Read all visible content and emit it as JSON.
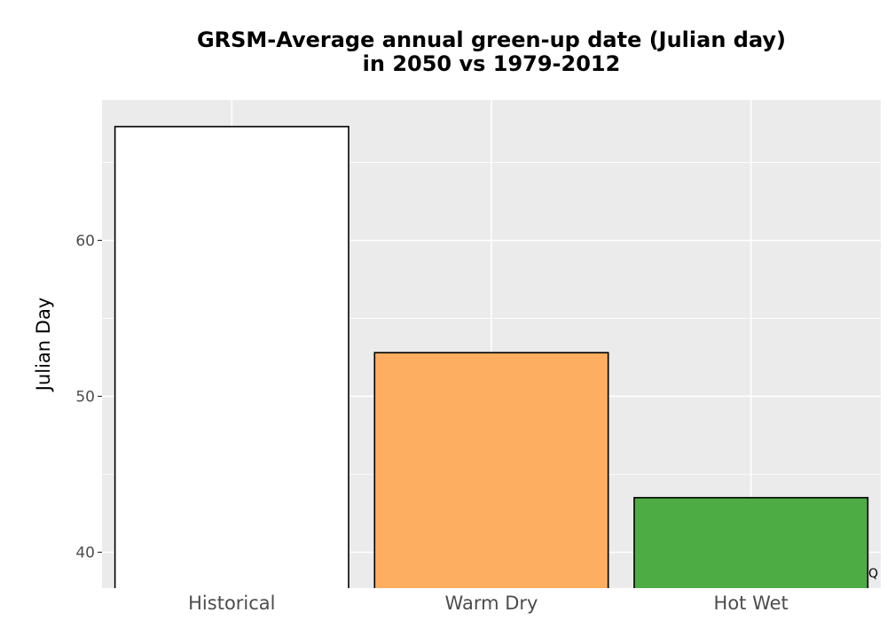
{
  "chart_data": {
    "type": "bar",
    "title_lines": [
      "GRSM-Average annual green-up date (Julian day)",
      "in 2050 vs 1979-2012"
    ],
    "xlabel": "",
    "ylabel": "Julian Day",
    "categories": [
      "Historical",
      "Warm Dry",
      "Hot Wet"
    ],
    "values": [
      67.3,
      52.8,
      43.5
    ],
    "colors": [
      "#ffffff",
      "#fdae61",
      "#4dac43"
    ],
    "bar_outline": "#000000",
    "ylim": [
      37.7,
      69.0
    ],
    "yticks": [
      40,
      50,
      60
    ],
    "ytick_labels": [
      "40",
      "50",
      "60"
    ],
    "grid": true,
    "panel_background": "#ebebeb",
    "gridline_color": "#ffffff"
  },
  "corner_mark": "Q"
}
